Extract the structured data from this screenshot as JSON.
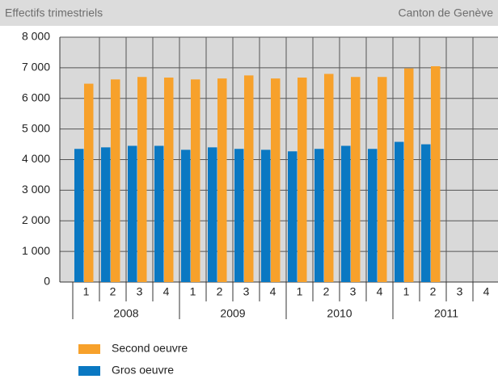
{
  "chart_data": {
    "type": "bar",
    "title": "Effectifs trimestriels",
    "subtitle": "Canton de Genève",
    "categories": [
      "1",
      "2",
      "3",
      "4",
      "1",
      "2",
      "3",
      "4",
      "1",
      "2",
      "3",
      "4",
      "1",
      "2",
      "3",
      "4"
    ],
    "years": [
      "2008",
      "2009",
      "2010",
      "2011"
    ],
    "series": [
      {
        "name": "Gros oeuvre",
        "color": "#0a78c2",
        "values": [
          4350,
          4400,
          4450,
          4450,
          4320,
          4400,
          4350,
          4320,
          4270,
          4350,
          4450,
          4350,
          4580,
          4500,
          null,
          null
        ]
      },
      {
        "name": "Second oeuvre",
        "color": "#f7a12b",
        "values": [
          6480,
          6620,
          6700,
          6680,
          6620,
          6650,
          6750,
          6650,
          6680,
          6800,
          6700,
          6700,
          6980,
          7050,
          null,
          null
        ]
      }
    ],
    "ylim": [
      0,
      8000
    ],
    "yticks": [
      0,
      {
        "value": 1000,
        "label": "1 000"
      },
      {
        "value": 2000,
        "label": "2 000"
      },
      {
        "value": 3000,
        "label": "3 000"
      },
      {
        "value": 4000,
        "label": "4 000"
      },
      {
        "value": 5000,
        "label": "5 000"
      },
      {
        "value": 6000,
        "label": "6 000"
      },
      {
        "value": 7000,
        "label": "7 000"
      },
      {
        "value": 8000,
        "label": "8 000"
      }
    ],
    "grid": true
  }
}
